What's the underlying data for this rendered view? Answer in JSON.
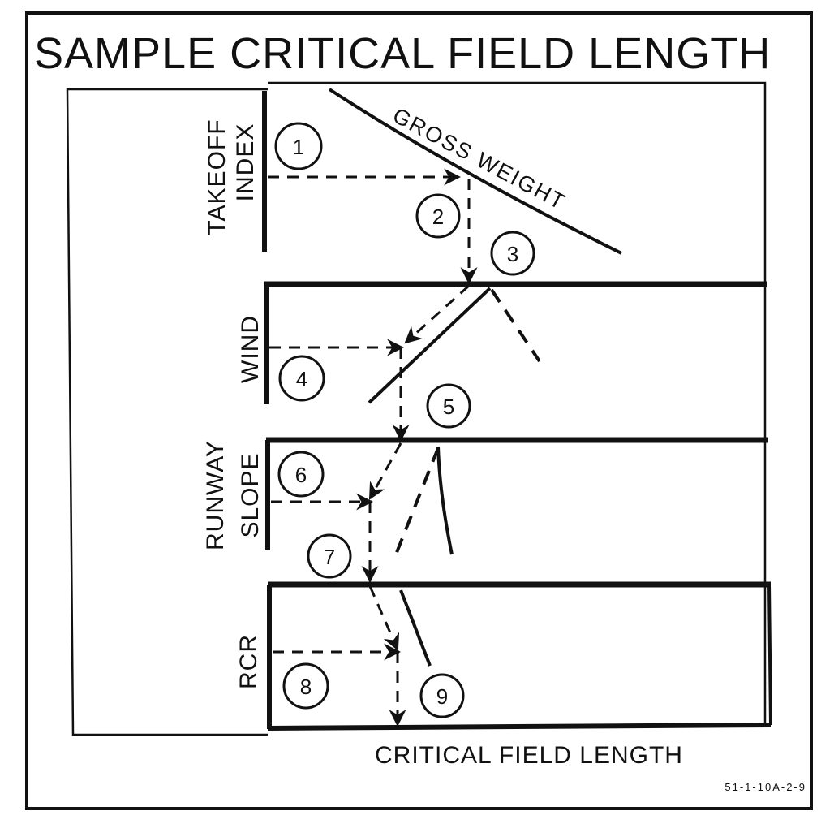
{
  "title": "SAMPLE CRITICAL FIELD LENGTH",
  "panels": {
    "takeoff_index": "TAKEOFF INDEX",
    "wind": "WIND",
    "runway_slope": "RUNWAY SLOPE",
    "rcr": "RCR"
  },
  "curve_label": "GROSS WEIGHT",
  "output_label": "CRITICAL FIELD LENGTH",
  "figure_id": "51-1-10A-2-9",
  "steps": [
    "1",
    "2",
    "3",
    "4",
    "5",
    "6",
    "7",
    "8",
    "9"
  ]
}
